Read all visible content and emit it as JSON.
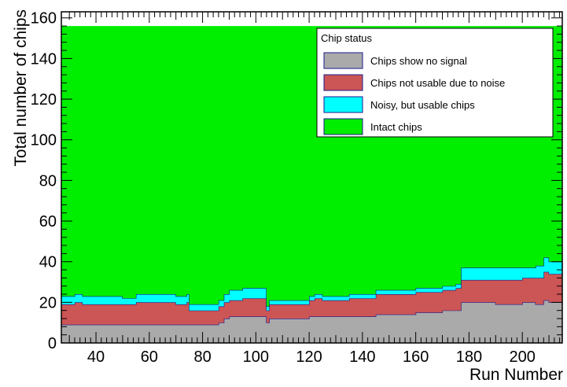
{
  "chart_data": {
    "type": "area",
    "stacked": true,
    "title": "",
    "xlabel": "Run Number",
    "ylabel": "Total number of chips",
    "xlim": [
      27,
      215
    ],
    "ylim": [
      0,
      163
    ],
    "xticks": [
      40,
      60,
      80,
      100,
      120,
      140,
      160,
      180,
      200
    ],
    "yticks": [
      0,
      20,
      40,
      60,
      80,
      100,
      120,
      140,
      160
    ],
    "grid": false,
    "legend": {
      "title": "Chip status",
      "placement": "top-right"
    },
    "x": [
      27,
      30,
      32,
      35,
      37,
      38,
      40,
      42,
      45,
      47,
      49,
      50,
      52,
      55,
      60,
      65,
      70,
      72,
      74,
      75,
      77,
      80,
      83,
      86,
      88,
      90,
      95,
      100,
      103,
      104,
      105,
      108,
      110,
      115,
      120,
      122,
      125,
      130,
      135,
      140,
      145,
      150,
      155,
      160,
      165,
      170,
      175,
      177,
      180,
      185,
      190,
      195,
      200,
      205,
      208,
      210,
      215
    ],
    "series": [
      {
        "name": "Chips show no signal",
        "color": "#aaaaaa",
        "values": [
          9,
          9,
          9,
          9,
          9,
          9,
          9,
          9,
          9,
          9,
          9,
          9,
          9,
          9,
          9,
          9,
          9,
          9,
          9,
          9,
          9,
          9,
          9,
          10,
          12,
          13,
          13,
          13,
          13,
          10,
          12,
          12,
          12,
          12,
          13,
          13,
          13,
          13,
          13,
          13,
          14,
          14,
          14,
          15,
          15,
          16,
          16,
          20,
          20,
          20,
          19,
          19,
          20,
          19,
          21,
          20,
          19
        ]
      },
      {
        "name": "Chips not usable due to noise",
        "color": "#cc5555",
        "values": [
          10,
          10,
          11,
          10,
          10,
          10,
          10,
          10,
          10,
          10,
          10,
          10,
          10,
          11,
          11,
          11,
          10,
          10,
          11,
          7,
          7,
          7,
          7,
          8,
          8,
          8,
          9,
          9,
          9,
          6,
          7,
          7,
          7,
          7,
          8,
          9,
          8,
          8,
          9,
          9,
          10,
          10,
          10,
          10,
          10,
          10,
          11,
          11,
          11,
          11,
          12,
          12,
          12,
          13,
          14,
          14,
          14
        ]
      },
      {
        "name": "Noisy, but usable chips",
        "color": "#00ffff",
        "values": [
          4,
          4,
          4,
          4,
          4,
          4,
          4,
          4,
          4,
          4,
          4,
          3,
          3,
          4,
          4,
          4,
          4,
          4,
          4,
          3,
          3,
          3,
          3,
          3,
          4,
          5,
          5,
          5,
          5,
          2,
          2,
          2,
          2,
          2,
          2,
          2,
          2,
          2,
          2,
          2,
          2,
          2,
          2,
          2,
          2,
          2,
          2,
          6,
          6,
          6,
          6,
          6,
          5,
          6,
          7,
          6,
          4
        ]
      },
      {
        "name": "Intact chips",
        "color": "#00ee00",
        "values": [
          133,
          133,
          132,
          133,
          133,
          133,
          133,
          133,
          133,
          133,
          133,
          134,
          134,
          132,
          132,
          132,
          133,
          133,
          132,
          137,
          137,
          137,
          137,
          135,
          132,
          130,
          129,
          129,
          129,
          138,
          135,
          135,
          135,
          135,
          133,
          132,
          133,
          133,
          132,
          132,
          130,
          130,
          130,
          129,
          129,
          128,
          127,
          119,
          119,
          119,
          119,
          119,
          119,
          118,
          114,
          116,
          119
        ]
      }
    ]
  }
}
